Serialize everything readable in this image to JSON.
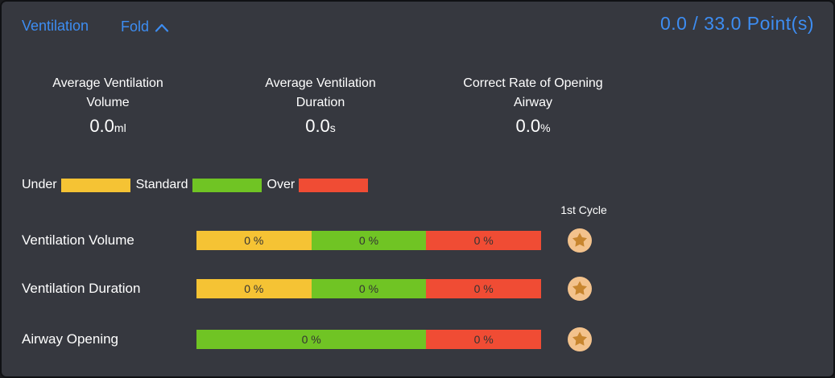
{
  "panel": {
    "title": "Ventilation",
    "fold_label": "Fold",
    "points_text": "0.0 / 33.0 Point(s)"
  },
  "stats": [
    {
      "label_line1": "Average Ventilation",
      "label_line2": "Volume",
      "value": "0.0",
      "unit": "ml"
    },
    {
      "label_line1": "Average Ventilation",
      "label_line2": "Duration",
      "value": "0.0",
      "unit": "s"
    },
    {
      "label_line1": "Correct Rate of Opening",
      "label_line2": "Airway",
      "value": "0.0",
      "unit": "%"
    }
  ],
  "legend": [
    {
      "label": "Under",
      "color": "#F5C334"
    },
    {
      "label": "Standard",
      "color": "#70C424"
    },
    {
      "label": "Over",
      "color": "#F04C34"
    }
  ],
  "cycle_header": "1st Cycle",
  "rows": [
    {
      "label": "Ventilation Volume",
      "segments": [
        {
          "zone": "under",
          "value": "0 %",
          "color": "#F5C334",
          "width_pct": 33.33
        },
        {
          "zone": "standard",
          "value": "0 %",
          "color": "#70C424",
          "width_pct": 33.34
        },
        {
          "zone": "over",
          "value": "0 %",
          "color": "#F04C34",
          "width_pct": 33.33
        }
      ]
    },
    {
      "label": "Ventilation Duration",
      "segments": [
        {
          "zone": "under",
          "value": "0 %",
          "color": "#F5C334",
          "width_pct": 33.33
        },
        {
          "zone": "standard",
          "value": "0 %",
          "color": "#70C424",
          "width_pct": 33.34
        },
        {
          "zone": "over",
          "value": "0 %",
          "color": "#F04C34",
          "width_pct": 33.33
        }
      ]
    },
    {
      "label": "Airway Opening",
      "segments": [
        {
          "zone": "standard",
          "value": "0 %",
          "color": "#70C424",
          "width_pct": 66.67
        },
        {
          "zone": "over",
          "value": "0 %",
          "color": "#F04C34",
          "width_pct": 33.33
        }
      ]
    }
  ],
  "colors": {
    "accent_blue": "#3D8DF2",
    "panel_bg": "#36383F",
    "under_yellow": "#F5C334",
    "standard_green": "#70C424",
    "over_red": "#F04C34",
    "bar_text": "#333333",
    "badge_bg": "#F3C28C",
    "badge_star": "#C8862F"
  }
}
